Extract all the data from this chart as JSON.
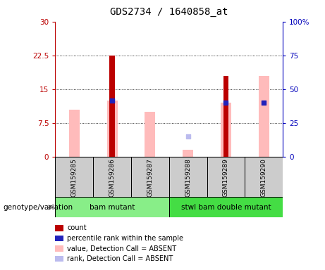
{
  "title": "GDS2734 / 1640858_at",
  "samples": [
    "GSM159285",
    "GSM159286",
    "GSM159287",
    "GSM159288",
    "GSM159289",
    "GSM159290"
  ],
  "left_ylim": [
    0,
    30
  ],
  "right_ylim": [
    0,
    100
  ],
  "left_yticks": [
    0,
    7.5,
    15,
    22.5,
    30
  ],
  "right_yticks": [
    0,
    25,
    50,
    75,
    100
  ],
  "left_yticklabels": [
    "0",
    "7.5",
    "15",
    "22.5",
    "30"
  ],
  "right_yticklabels": [
    "0",
    "25",
    "50",
    "75",
    "100%"
  ],
  "red_bars": [
    0,
    22.5,
    0,
    0,
    18.0,
    0
  ],
  "blue_dots_y": [
    0,
    12.5,
    0,
    0,
    12.0,
    12.0
  ],
  "pink_bars": [
    10.5,
    12.5,
    10.0,
    1.5,
    12.0,
    18.0
  ],
  "lightblue_dots_y": [
    0,
    0,
    0,
    4.5,
    0,
    0
  ],
  "red_bar_color": "#bb0000",
  "blue_dot_color": "#2222bb",
  "pink_bar_color": "#ffbbbb",
  "lightblue_dot_color": "#bbbbee",
  "group_bg": "#cccccc",
  "groups": [
    {
      "label": "bam mutant",
      "start": 0,
      "end": 2,
      "color": "#88ee88"
    },
    {
      "label": "stwl bam double mutant",
      "start": 3,
      "end": 5,
      "color": "#44dd44"
    }
  ],
  "group_label_prefix": "genotype/variation",
  "legend_items": [
    {
      "color": "#bb0000",
      "label": "count"
    },
    {
      "color": "#2222bb",
      "label": "percentile rank within the sample"
    },
    {
      "color": "#ffbbbb",
      "label": "value, Detection Call = ABSENT"
    },
    {
      "color": "#bbbbee",
      "label": "rank, Detection Call = ABSENT"
    }
  ],
  "pink_bar_width": 0.28,
  "red_bar_width": 0.14,
  "dot_size": 20
}
